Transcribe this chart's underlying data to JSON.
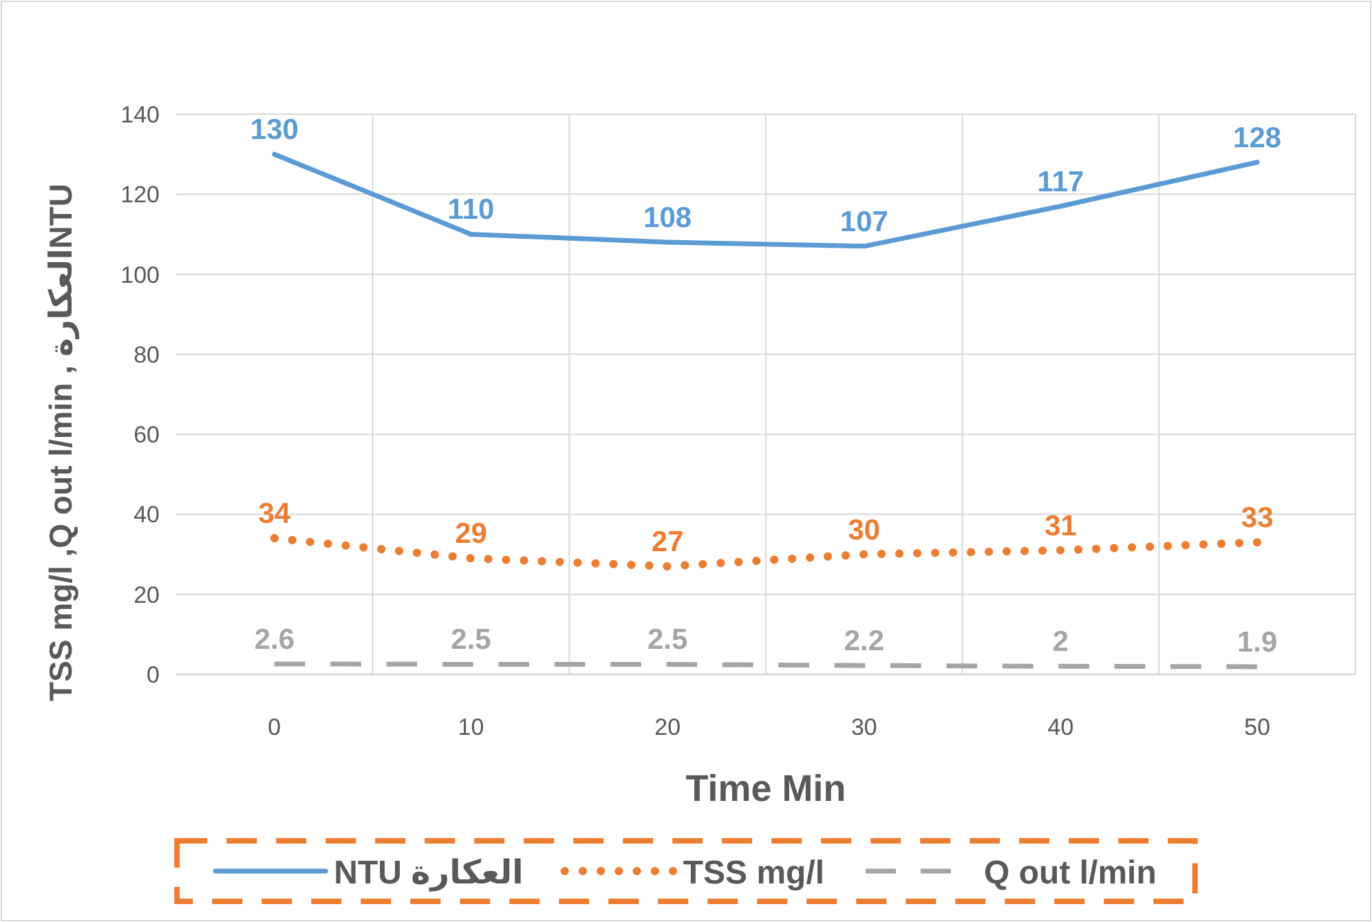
{
  "chart_data": {
    "type": "line",
    "xlabel": "Time Min",
    "ylabel": "TSS mg/l ,Q out l/min , العكارةNTU",
    "categories": [
      "0",
      "10",
      "20",
      "30",
      "40",
      "50"
    ],
    "series": [
      {
        "name": "NTU العكارة",
        "color": "#5b9bd5",
        "line_style": "solid",
        "values": [
          130,
          110,
          108,
          107,
          117,
          128
        ]
      },
      {
        "name": "TSS mg/l",
        "color": "#ed7d31",
        "line_style": "dotted",
        "values": [
          34,
          29,
          27,
          30,
          31,
          33
        ]
      },
      {
        "name": "Q out l/min",
        "color": "#a5a5a5",
        "line_style": "dashed",
        "values": [
          2.6,
          2.5,
          2.5,
          2.2,
          2,
          1.9
        ]
      }
    ],
    "ylim": [
      0,
      140
    ],
    "yticks": [
      0,
      20,
      40,
      60,
      80,
      100,
      120,
      140
    ],
    "grid": true,
    "legend": "bottom",
    "data_labels": true,
    "marker": "none"
  }
}
